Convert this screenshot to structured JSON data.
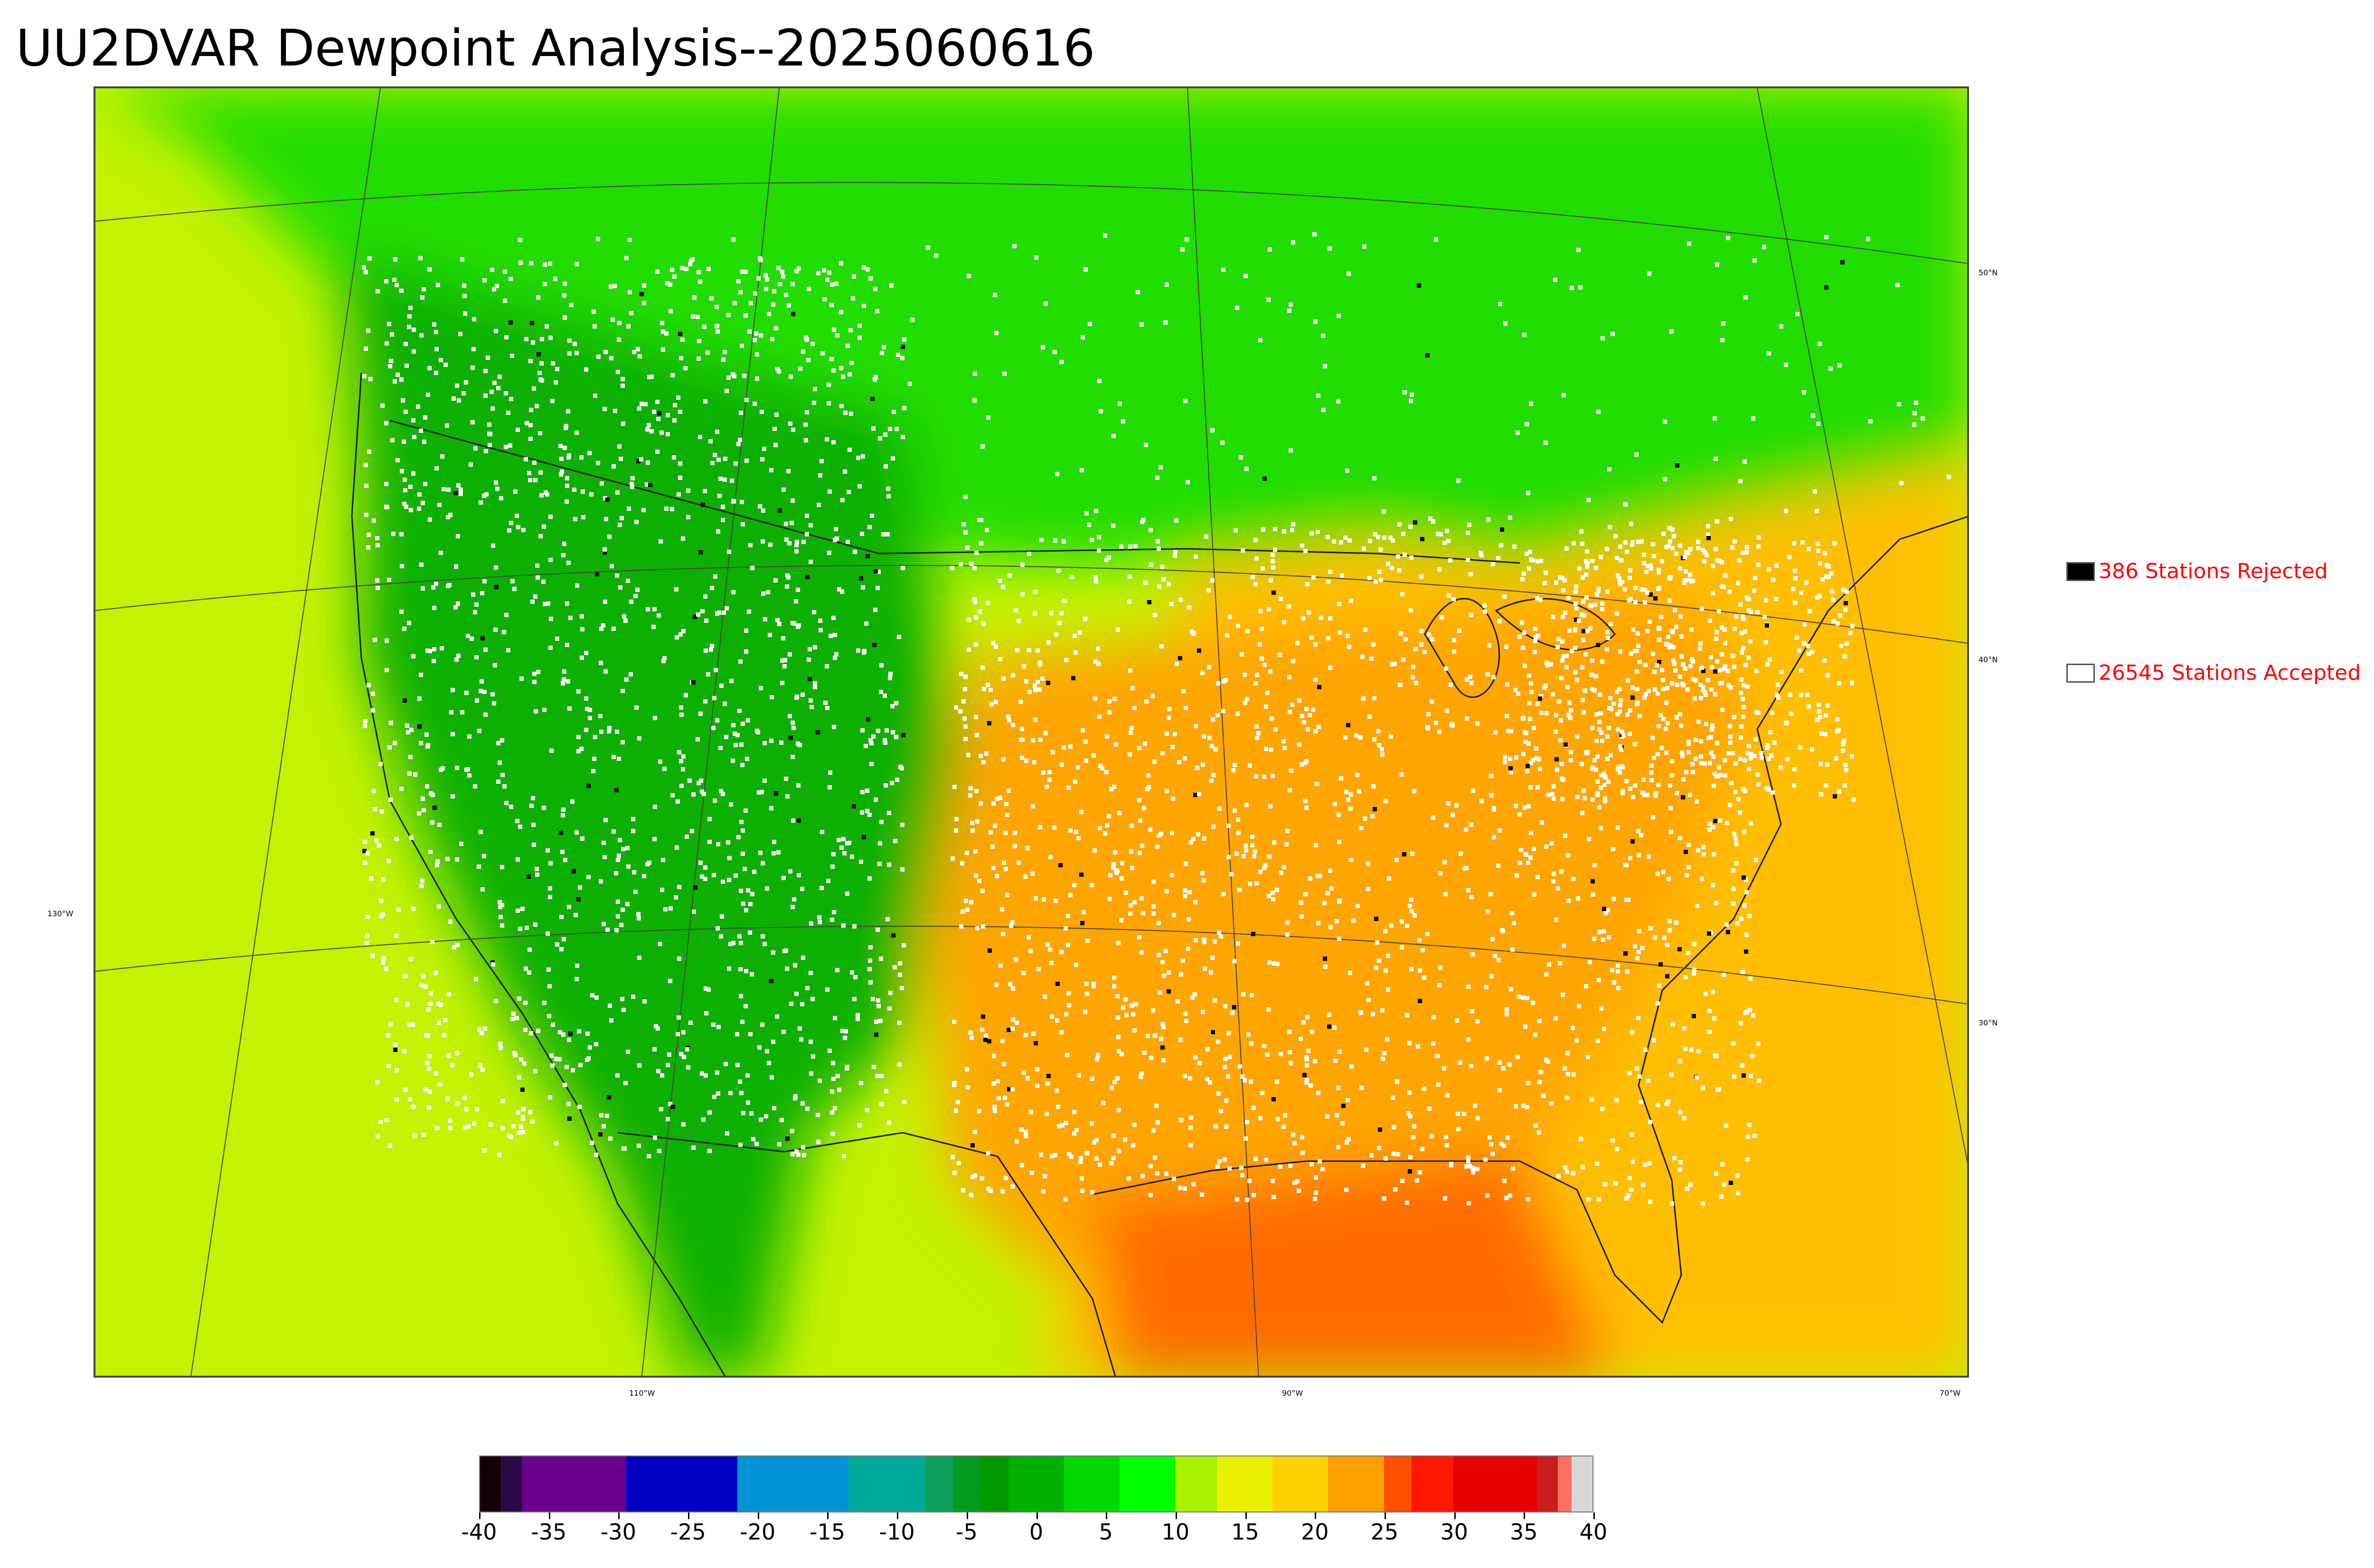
{
  "title": "UU2DVAR Dewpoint Analysis--2025060616",
  "map": {
    "lat_labels": [
      {
        "text": "50°N"
      },
      {
        "text": "40°N"
      },
      {
        "text": "30°N"
      }
    ],
    "lon_labels": [
      {
        "text": "130°W"
      },
      {
        "text": "110°W"
      },
      {
        "text": "90°W"
      },
      {
        "text": "70°W"
      }
    ],
    "colors": {
      "cool_north": "#22dd00",
      "dry_west": "#0fb000",
      "moist_southeast": "#ffa500",
      "gulf": "#ff6a00",
      "ocean_pacific": "#c4f200",
      "ocean_atlantic": "#ffbf00",
      "station_accepted": "#ffffff",
      "station_rejected": "#000000"
    }
  },
  "legend": {
    "rejected": {
      "count_label": "386 Stations Rejected",
      "swatch_color": "#000000"
    },
    "accepted": {
      "count_label": "26545 Stations Accepted",
      "swatch_color": "#ffffff"
    }
  },
  "colorbar": {
    "min": -40,
    "max": 40,
    "tick_labels": [
      "-40",
      "-35",
      "-30",
      "-25",
      "-20",
      "-15",
      "-10",
      "-5",
      "0",
      "5",
      "10",
      "15",
      "20",
      "25",
      "30",
      "35",
      "40"
    ],
    "stops": [
      {
        "from": -40,
        "to": -38.5,
        "color": "#140007"
      },
      {
        "from": -38.5,
        "to": -37,
        "color": "#2b0b46"
      },
      {
        "from": -37,
        "to": -29.5,
        "color": "#6b008e"
      },
      {
        "from": -29.5,
        "to": -21.5,
        "color": "#0000c4"
      },
      {
        "from": -21.5,
        "to": -13.5,
        "color": "#0094d4"
      },
      {
        "from": -13.5,
        "to": -8,
        "color": "#00aa9a"
      },
      {
        "from": -8,
        "to": -6,
        "color": "#10a060"
      },
      {
        "from": -6,
        "to": -4,
        "color": "#039a20"
      },
      {
        "from": -4,
        "to": -2,
        "color": "#009a00"
      },
      {
        "from": -2,
        "to": 2,
        "color": "#00b000"
      },
      {
        "from": 2,
        "to": 6,
        "color": "#00d800"
      },
      {
        "from": 6,
        "to": 10,
        "color": "#00ff00"
      },
      {
        "from": 10,
        "to": 13,
        "color": "#a8f000"
      },
      {
        "from": 13,
        "to": 17,
        "color": "#e8f000"
      },
      {
        "from": 17,
        "to": 21,
        "color": "#ffd000"
      },
      {
        "from": 21,
        "to": 25,
        "color": "#ffa000"
      },
      {
        "from": 25,
        "to": 27,
        "color": "#ff5000"
      },
      {
        "from": 27,
        "to": 30,
        "color": "#ff1800"
      },
      {
        "from": 30,
        "to": 36,
        "color": "#e60000"
      },
      {
        "from": 36,
        "to": 37.5,
        "color": "#c81e1e"
      },
      {
        "from": 37.5,
        "to": 38.5,
        "color": "#ff7060"
      },
      {
        "from": 38.5,
        "to": 40,
        "color": "#d8d8d8"
      }
    ]
  }
}
